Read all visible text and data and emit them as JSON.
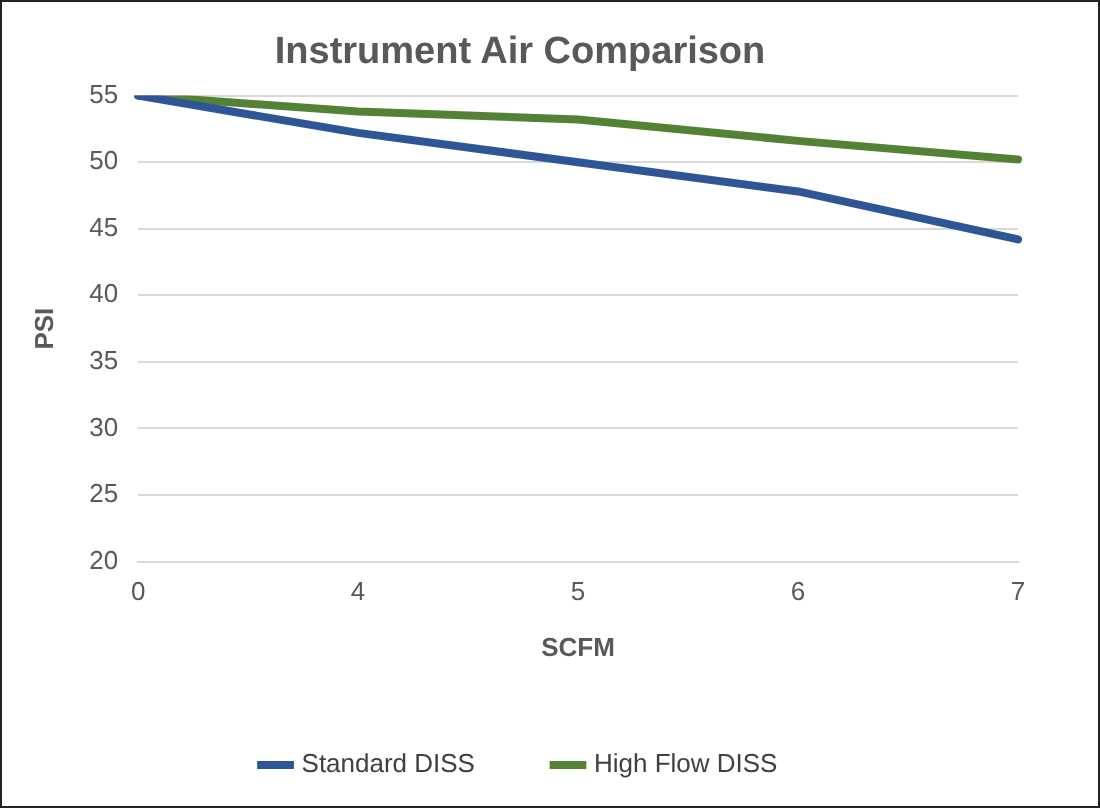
{
  "chart_data": {
    "type": "line",
    "title": "Instrument Air Comparison",
    "xlabel": "SCFM",
    "ylabel": "PSI",
    "categories": [
      "0",
      "4",
      "5",
      "6",
      "7"
    ],
    "series": [
      {
        "name": "Standard DISS",
        "color": "#2f5597",
        "values": [
          55,
          52.2,
          50,
          47.8,
          44.2
        ]
      },
      {
        "name": "High Flow DISS",
        "color": "#548235",
        "values": [
          55,
          53.8,
          53.2,
          51.6,
          50.2
        ]
      }
    ],
    "ylim": [
      20,
      55
    ],
    "yticks": [
      20,
      25,
      30,
      35,
      40,
      45,
      50,
      55
    ],
    "grid": "y",
    "legend": "bottom",
    "marker": "none",
    "line_style": "solid"
  }
}
